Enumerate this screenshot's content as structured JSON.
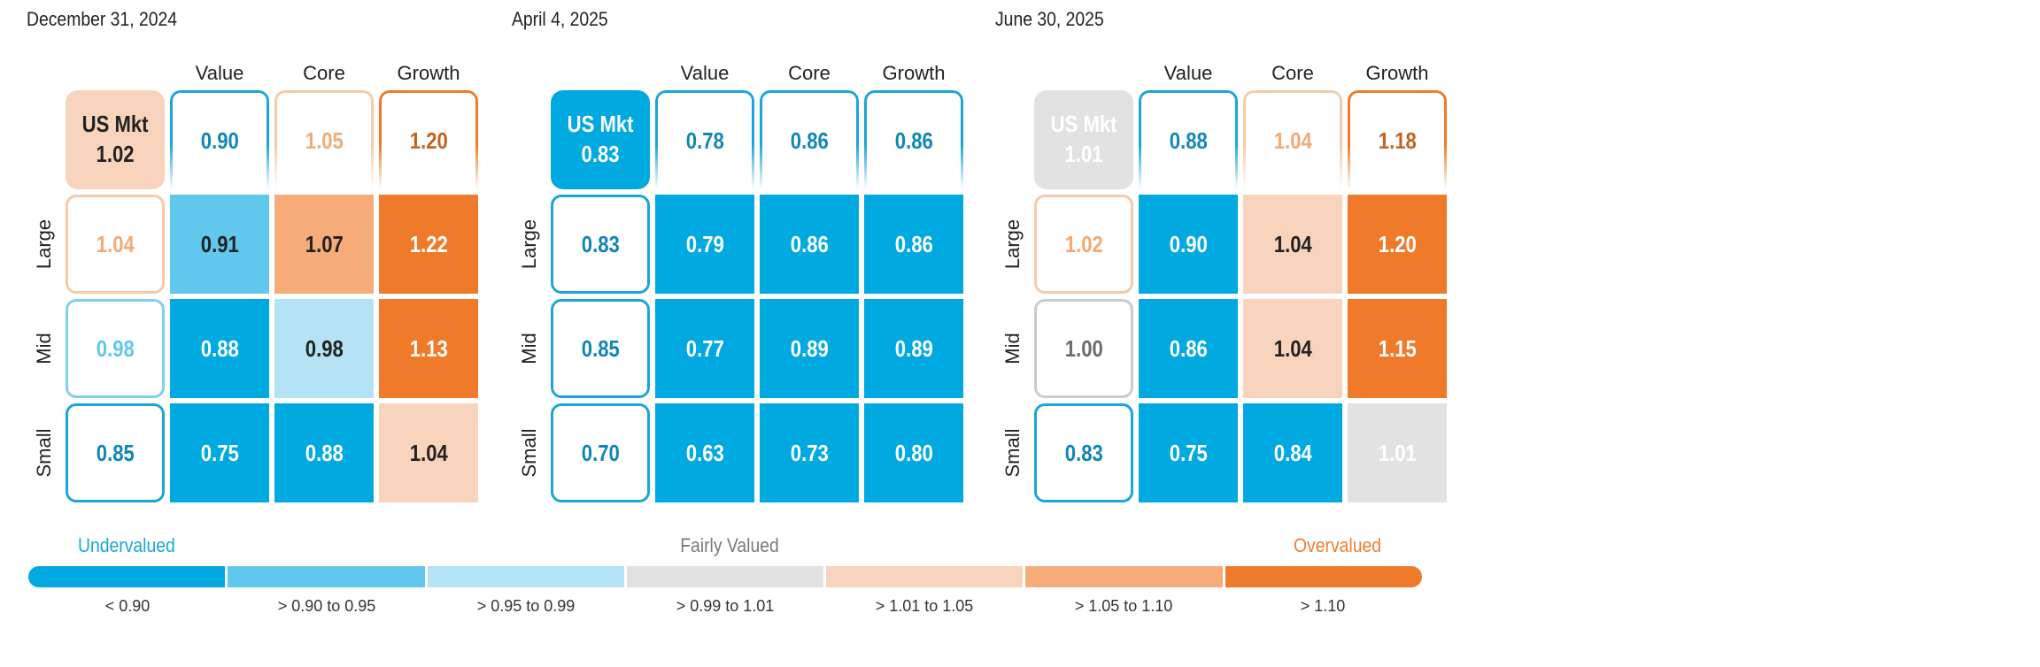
{
  "chart_data": {
    "type": "heatmap",
    "title": "",
    "columns": [
      "Value",
      "Core",
      "Growth"
    ],
    "rows": [
      "Large",
      "Mid",
      "Small"
    ],
    "market_label": "US Mkt",
    "grids": [
      {
        "date": "December 31, 2024",
        "us_mkt": "1.02",
        "column_values": [
          "0.90",
          "1.05",
          "1.20"
        ],
        "row_values": [
          "1.04",
          "0.98",
          "0.85"
        ],
        "cells": [
          [
            "0.91",
            "1.07",
            "1.22"
          ],
          [
            "0.88",
            "0.98",
            "1.13"
          ],
          [
            "0.75",
            "0.88",
            "1.04"
          ]
        ]
      },
      {
        "date": "April 4, 2025",
        "us_mkt": "0.83",
        "column_values": [
          "0.78",
          "0.86",
          "0.86"
        ],
        "row_values": [
          "0.83",
          "0.85",
          "0.70"
        ],
        "cells": [
          [
            "0.79",
            "0.86",
            "0.86"
          ],
          [
            "0.77",
            "0.89",
            "0.89"
          ],
          [
            "0.63",
            "0.73",
            "0.80"
          ]
        ]
      },
      {
        "date": "June 30, 2025",
        "us_mkt": "1.01",
        "column_values": [
          "0.88",
          "1.04",
          "1.18"
        ],
        "row_values": [
          "1.02",
          "1.00",
          "0.83"
        ],
        "cells": [
          [
            "0.90",
            "1.04",
            "1.20"
          ],
          [
            "0.86",
            "1.04",
            "1.15"
          ],
          [
            "0.75",
            "0.84",
            "1.01"
          ]
        ]
      }
    ],
    "legend": {
      "undervalued": "Undervalued",
      "fairly_valued": "Fairly Valued",
      "overvalued": "Overvalued",
      "bins": [
        {
          "label": "< 0.90",
          "min": null,
          "max": 0.9,
          "color": "#00a9e0"
        },
        {
          "label": "> 0.90 to 0.95",
          "min": 0.9,
          "max": 0.95,
          "color": "#5fc8ec"
        },
        {
          "label": "> 0.95 to 0.99",
          "min": 0.95,
          "max": 0.99,
          "color": "#b4e3f6"
        },
        {
          "label": "> 0.99 to 1.01",
          "min": 0.99,
          "max": 1.01,
          "color": "#e2e2e2"
        },
        {
          "label": "> 1.01 to 1.05",
          "min": 1.01,
          "max": 1.05,
          "color": "#f9d4bd"
        },
        {
          "label": "> 1.05 to 1.10",
          "min": 1.05,
          "max": 1.1,
          "color": "#f5ac78"
        },
        {
          "label": "> 1.10",
          "min": 1.1,
          "max": null,
          "color": "#ef7a29"
        }
      ]
    }
  },
  "colors": {
    "undervalued_text": "#1aa6d8",
    "fairly_valued_text": "#7a7a7a",
    "overvalued_text": "#ee7d32"
  }
}
